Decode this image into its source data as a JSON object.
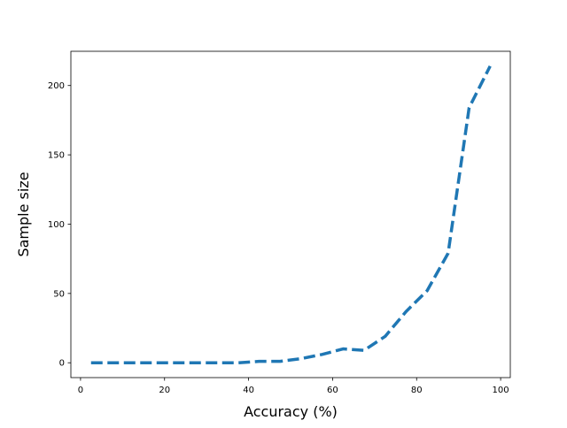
{
  "chart_data": {
    "type": "line",
    "title": "",
    "xlabel": "Accuracy (%)",
    "ylabel": "Sample size",
    "xlim": [
      -2.3,
      102.3
    ],
    "ylim": [
      -10.7,
      224.7
    ],
    "xticks": [
      0,
      20,
      40,
      60,
      80,
      100
    ],
    "yticks": [
      0,
      50,
      100,
      150,
      200
    ],
    "grid": false,
    "legend": "none",
    "series": [
      {
        "color": "#1f77b4",
        "line_style": "dashed",
        "x": [
          2.5,
          7.5,
          12.5,
          17.5,
          22.5,
          27.5,
          32.5,
          37.5,
          42.5,
          47.5,
          52.5,
          57.5,
          62.5,
          67.5,
          72.5,
          77.5,
          82.5,
          87.5,
          92.5,
          97.5
        ],
        "y": [
          0,
          0,
          0,
          0,
          0,
          0,
          0,
          0,
          1,
          1,
          3,
          6,
          10,
          9,
          19,
          37,
          52,
          79,
          184,
          214
        ]
      }
    ]
  }
}
